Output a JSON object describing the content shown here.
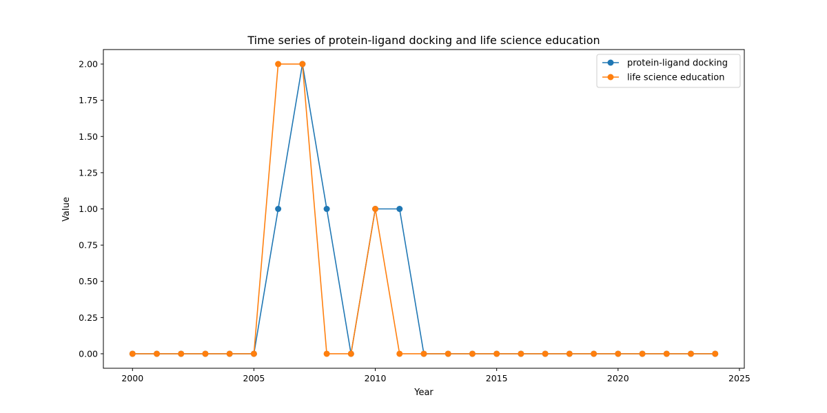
{
  "chart_data": {
    "type": "line",
    "title": "Time series of protein-ligand docking and life science education",
    "xlabel": "Year",
    "ylabel": "Value",
    "xlim": [
      1998.8,
      2025.2
    ],
    "ylim": [
      -0.1,
      2.1
    ],
    "xticks": [
      2000,
      2005,
      2010,
      2015,
      2020,
      2025
    ],
    "yticks": [
      0.0,
      0.25,
      0.5,
      0.75,
      1.0,
      1.25,
      1.5,
      1.75,
      2.0
    ],
    "xtick_labels": [
      "2000",
      "2005",
      "2010",
      "2015",
      "2020",
      "2025"
    ],
    "ytick_labels": [
      "0.00",
      "0.25",
      "0.50",
      "0.75",
      "1.00",
      "1.25",
      "1.50",
      "1.75",
      "2.00"
    ],
    "grid": false,
    "legend_position": "top-right",
    "x": [
      2000,
      2001,
      2002,
      2003,
      2004,
      2005,
      2006,
      2007,
      2008,
      2009,
      2010,
      2011,
      2012,
      2013,
      2014,
      2015,
      2016,
      2017,
      2018,
      2019,
      2020,
      2021,
      2022,
      2023,
      2024
    ],
    "series": [
      {
        "name": "protein-ligand docking",
        "color": "#1f77b4",
        "values": [
          0,
          0,
          0,
          0,
          0,
          0,
          1,
          2,
          1,
          0,
          1,
          1,
          0,
          0,
          0,
          0,
          0,
          0,
          0,
          0,
          0,
          0,
          0,
          0,
          0
        ]
      },
      {
        "name": "life science education",
        "color": "#ff7f0e",
        "values": [
          0,
          0,
          0,
          0,
          0,
          0,
          2,
          2,
          0,
          0,
          1,
          0,
          0,
          0,
          0,
          0,
          0,
          0,
          0,
          0,
          0,
          0,
          0,
          0,
          0
        ]
      }
    ]
  }
}
